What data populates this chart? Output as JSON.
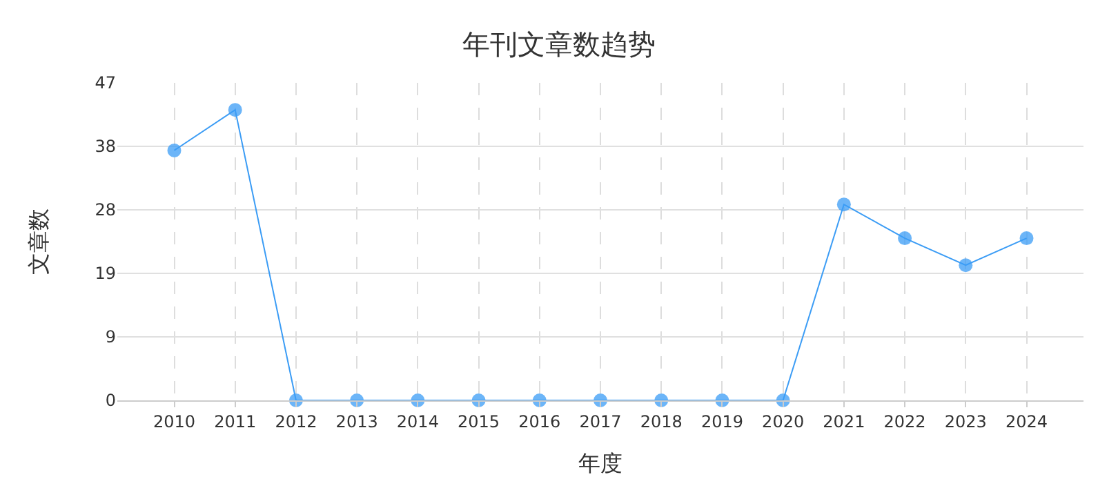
{
  "chart_data": {
    "type": "line",
    "title": "年刊文章数趋势",
    "xlabel": "年度",
    "ylabel": "文章数",
    "categories": [
      "2010",
      "2011",
      "2012",
      "2013",
      "2014",
      "2015",
      "2016",
      "2017",
      "2018",
      "2019",
      "2020",
      "2021",
      "2022",
      "2023",
      "2024"
    ],
    "series": [
      {
        "color": "#3b9cf5",
        "values": [
          37,
          43,
          0,
          0,
          0,
          0,
          0,
          0,
          0,
          0,
          0,
          29,
          24,
          20,
          24
        ]
      }
    ],
    "ylim": [
      0,
      47
    ],
    "yticks": [
      0,
      {
        "value": 9.4,
        "label": "9"
      },
      {
        "value": 18.8,
        "label": "19"
      },
      {
        "value": 28.2,
        "label": "28"
      },
      {
        "value": 37.6,
        "label": "38"
      },
      47
    ],
    "grid": true,
    "marker": "circle",
    "line_style": "solid",
    "legend": false
  }
}
